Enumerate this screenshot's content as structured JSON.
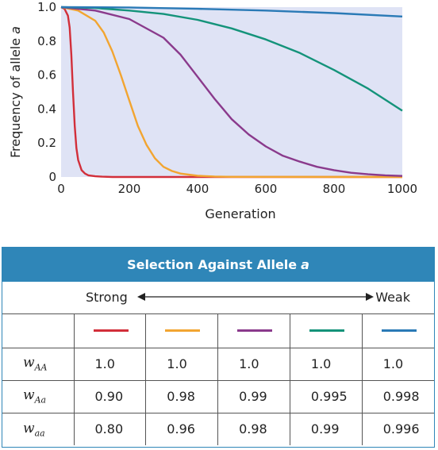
{
  "chart_data": {
    "type": "line",
    "xlabel": "Generation",
    "ylabel_text": "Frequency of allele ",
    "ylabel_allele": "a",
    "xlim": [
      0,
      1000
    ],
    "ylim": [
      0,
      1.0
    ],
    "xticks": [
      0,
      200,
      400,
      600,
      800,
      1000
    ],
    "yticks": [
      0,
      0.2,
      0.4,
      0.6,
      0.8,
      1.0
    ],
    "xtick_labels": [
      "0",
      "200",
      "400",
      "600",
      "800",
      "1000"
    ],
    "ytick_labels": [
      "0",
      "0.2",
      "0.4",
      "0.6",
      "0.8",
      "1.0"
    ],
    "grid": false,
    "background": "#dfe3f5",
    "series": [
      {
        "color": "#d22f3a",
        "x": [
          0,
          10,
          20,
          25,
          30,
          35,
          40,
          45,
          50,
          60,
          70,
          80,
          100,
          120,
          150,
          1000
        ],
        "y": [
          1.0,
          0.99,
          0.95,
          0.88,
          0.72,
          0.5,
          0.3,
          0.17,
          0.1,
          0.04,
          0.02,
          0.01,
          0.004,
          0.002,
          0.0,
          0.0
        ]
      },
      {
        "color": "#f2a531",
        "x": [
          0,
          50,
          100,
          125,
          150,
          175,
          200,
          225,
          250,
          275,
          300,
          325,
          350,
          400,
          450,
          500,
          1000
        ],
        "y": [
          1.0,
          0.98,
          0.92,
          0.85,
          0.74,
          0.6,
          0.45,
          0.3,
          0.19,
          0.11,
          0.06,
          0.035,
          0.02,
          0.007,
          0.003,
          0.001,
          0.0
        ]
      },
      {
        "color": "#8a3a8c",
        "x": [
          0,
          100,
          200,
          300,
          350,
          400,
          450,
          500,
          550,
          600,
          650,
          700,
          750,
          800,
          850,
          900,
          950,
          1000
        ],
        "y": [
          1.0,
          0.98,
          0.93,
          0.82,
          0.72,
          0.59,
          0.46,
          0.34,
          0.25,
          0.18,
          0.125,
          0.09,
          0.06,
          0.04,
          0.025,
          0.016,
          0.01,
          0.006
        ]
      },
      {
        "color": "#14937a",
        "x": [
          0,
          100,
          200,
          300,
          400,
          500,
          600,
          700,
          800,
          900,
          1000
        ],
        "y": [
          1.0,
          0.995,
          0.98,
          0.96,
          0.925,
          0.875,
          0.81,
          0.73,
          0.63,
          0.52,
          0.39
        ]
      },
      {
        "color": "#2a7ab6",
        "x": [
          0,
          200,
          400,
          600,
          800,
          1000
        ],
        "y": [
          1.0,
          0.998,
          0.99,
          0.98,
          0.965,
          0.945
        ]
      }
    ]
  },
  "table": {
    "title": "Selection Against Allele",
    "title_allele": "a",
    "strong_label": "Strong",
    "weak_label": "Weak",
    "rows": [
      {
        "label": "w",
        "sub": "AA",
        "values": [
          "1.0",
          "1.0",
          "1.0",
          "1.0",
          "1.0"
        ]
      },
      {
        "label": "w",
        "sub": "Aa",
        "values": [
          "0.90",
          "0.98",
          "0.99",
          "0.995",
          "0.998"
        ]
      },
      {
        "label": "w",
        "sub": "aa",
        "values": [
          "0.80",
          "0.96",
          "0.98",
          "0.99",
          "0.996"
        ]
      }
    ]
  }
}
